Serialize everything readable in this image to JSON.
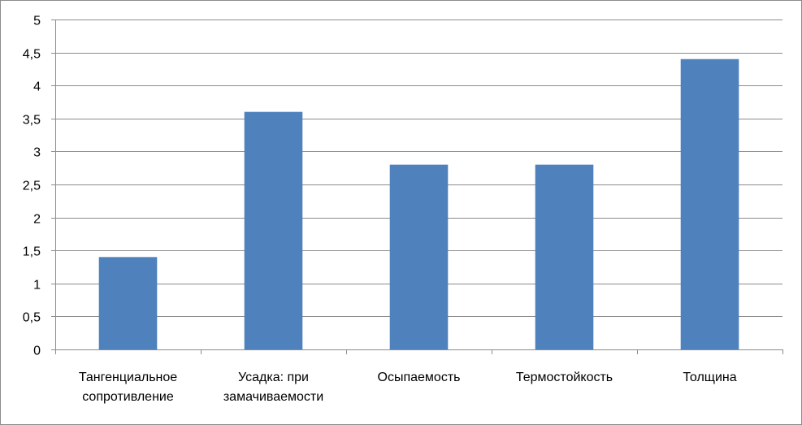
{
  "chart_data": {
    "type": "bar",
    "title": "",
    "xlabel": "",
    "ylabel": "",
    "categories": [
      [
        "Тангенциальное",
        "сопротивление"
      ],
      [
        "Усадка: при",
        "замачиваемости"
      ],
      [
        "Осыпаемость"
      ],
      [
        "Термостойкость"
      ],
      [
        "Толщина"
      ]
    ],
    "values": [
      1.4,
      3.6,
      2.8,
      2.8,
      4.4
    ],
    "ylim": [
      0,
      5
    ],
    "yticks": [
      "0",
      "0,5",
      "1",
      "1,5",
      "2",
      "2,5",
      "3",
      "3,5",
      "4",
      "4,5",
      "5"
    ],
    "ytick_values": [
      0,
      0.5,
      1,
      1.5,
      2,
      2.5,
      3,
      3.5,
      4,
      4.5,
      5
    ],
    "grid": true,
    "legend": "none",
    "colors": {
      "bar": "#4f81bd",
      "grid": "#8c8c8c",
      "axis": "#8c8c8c"
    }
  }
}
